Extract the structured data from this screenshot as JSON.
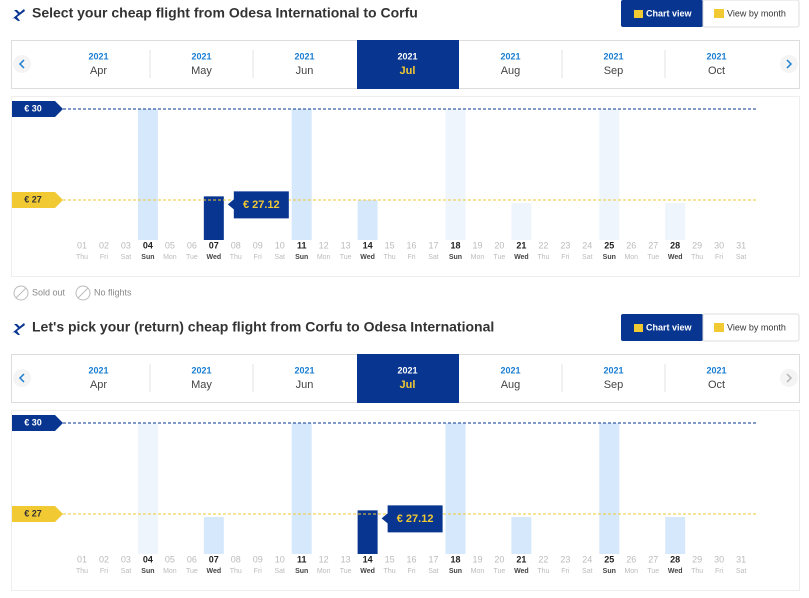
{
  "panels": [
    {
      "title": "Select your cheap flight from Odesa International to Corfu",
      "buttons": [
        "Chart view",
        "View by month"
      ],
      "months": [
        {
          "year": "2021",
          "month": "Apr"
        },
        {
          "year": "2021",
          "month": "May"
        },
        {
          "year": "2021",
          "month": "Jun"
        },
        {
          "year": "2021",
          "month": "Jul",
          "selected": true
        },
        {
          "year": "2021",
          "month": "Aug"
        },
        {
          "year": "2021",
          "month": "Sep"
        },
        {
          "year": "2021",
          "month": "Oct"
        }
      ],
      "next_arrow_color": "#1a7ed2",
      "ref_lines": [
        {
          "value": 30,
          "label": "€ 30",
          "color": "#073590"
        },
        {
          "value": 27,
          "label": "€ 27",
          "color": "#f1c933"
        }
      ],
      "days": [
        {
          "day": "01",
          "weekday": "Thu"
        },
        {
          "day": "02",
          "weekday": "Fri"
        },
        {
          "day": "03",
          "weekday": "Sat"
        },
        {
          "day": "04",
          "weekday": "Sun",
          "price": 30,
          "color": "#d6e8fb"
        },
        {
          "day": "05",
          "weekday": "Mon"
        },
        {
          "day": "06",
          "weekday": "Tue"
        },
        {
          "day": "07",
          "weekday": "Wed",
          "price": 27.12,
          "price_label": "€ 27.12",
          "color": "#073590",
          "selected": true
        },
        {
          "day": "08",
          "weekday": "Thu"
        },
        {
          "day": "09",
          "weekday": "Fri"
        },
        {
          "day": "10",
          "weekday": "Sat"
        },
        {
          "day": "11",
          "weekday": "Sun",
          "price": 30,
          "color": "#d6e8fb"
        },
        {
          "day": "12",
          "weekday": "Mon"
        },
        {
          "day": "13",
          "weekday": "Tue"
        },
        {
          "day": "14",
          "weekday": "Wed",
          "price": 27,
          "color": "#d6e8fb"
        },
        {
          "day": "15",
          "weekday": "Thu"
        },
        {
          "day": "16",
          "weekday": "Fri"
        },
        {
          "day": "17",
          "weekday": "Sat"
        },
        {
          "day": "18",
          "weekday": "Sun",
          "price": 30,
          "color": "#eef5fd"
        },
        {
          "day": "19",
          "weekday": "Mon"
        },
        {
          "day": "20",
          "weekday": "Tue"
        },
        {
          "day": "21",
          "weekday": "Wed",
          "price": 26.9,
          "color": "#eef5fd"
        },
        {
          "day": "22",
          "weekday": "Thu"
        },
        {
          "day": "23",
          "weekday": "Fri"
        },
        {
          "day": "24",
          "weekday": "Sat"
        },
        {
          "day": "25",
          "weekday": "Sun",
          "price": 30,
          "color": "#eef5fd"
        },
        {
          "day": "26",
          "weekday": "Mon"
        },
        {
          "day": "27",
          "weekday": "Tue"
        },
        {
          "day": "28",
          "weekday": "Wed",
          "price": 26.9,
          "color": "#eef5fd"
        },
        {
          "day": "29",
          "weekday": "Thu"
        },
        {
          "day": "30",
          "weekday": "Fri"
        },
        {
          "day": "31",
          "weekday": "Sat"
        }
      ],
      "legend": [
        "Sold out",
        "No flights"
      ]
    },
    {
      "title": "Let's pick your (return) cheap flight from Corfu to Odesa International",
      "buttons": [
        "Chart view",
        "View by month"
      ],
      "months": [
        {
          "year": "2021",
          "month": "Apr"
        },
        {
          "year": "2021",
          "month": "May"
        },
        {
          "year": "2021",
          "month": "Jun"
        },
        {
          "year": "2021",
          "month": "Jul",
          "selected": true
        },
        {
          "year": "2021",
          "month": "Aug"
        },
        {
          "year": "2021",
          "month": "Sep"
        },
        {
          "year": "2021",
          "month": "Oct"
        }
      ],
      "next_arrow_color": "#b5b5b5",
      "ref_lines": [
        {
          "value": 30,
          "label": "€ 30",
          "color": "#073590"
        },
        {
          "value": 27,
          "label": "€ 27",
          "color": "#f1c933"
        }
      ],
      "days": [
        {
          "day": "01",
          "weekday": "Thu"
        },
        {
          "day": "02",
          "weekday": "Fri"
        },
        {
          "day": "03",
          "weekday": "Sat"
        },
        {
          "day": "04",
          "weekday": "Sun",
          "price": 30,
          "color": "#eef5fd"
        },
        {
          "day": "05",
          "weekday": "Mon"
        },
        {
          "day": "06",
          "weekday": "Tue"
        },
        {
          "day": "07",
          "weekday": "Wed",
          "price": 26.9,
          "color": "#d6e8fb"
        },
        {
          "day": "08",
          "weekday": "Thu"
        },
        {
          "day": "09",
          "weekday": "Fri"
        },
        {
          "day": "10",
          "weekday": "Sat"
        },
        {
          "day": "11",
          "weekday": "Sun",
          "price": 30,
          "color": "#d6e8fb"
        },
        {
          "day": "12",
          "weekday": "Mon"
        },
        {
          "day": "13",
          "weekday": "Tue"
        },
        {
          "day": "14",
          "weekday": "Wed",
          "price": 27.12,
          "price_label": "€ 27.12",
          "color": "#073590",
          "selected": true
        },
        {
          "day": "15",
          "weekday": "Thu"
        },
        {
          "day": "16",
          "weekday": "Fri"
        },
        {
          "day": "17",
          "weekday": "Sat"
        },
        {
          "day": "18",
          "weekday": "Sun",
          "price": 30,
          "color": "#d6e8fb"
        },
        {
          "day": "19",
          "weekday": "Mon"
        },
        {
          "day": "20",
          "weekday": "Tue"
        },
        {
          "day": "21",
          "weekday": "Wed",
          "price": 26.9,
          "color": "#d6e8fb"
        },
        {
          "day": "22",
          "weekday": "Thu"
        },
        {
          "day": "23",
          "weekday": "Fri"
        },
        {
          "day": "24",
          "weekday": "Sat"
        },
        {
          "day": "25",
          "weekday": "Sun",
          "price": 30,
          "color": "#d6e8fb"
        },
        {
          "day": "26",
          "weekday": "Mon"
        },
        {
          "day": "27",
          "weekday": "Tue"
        },
        {
          "day": "28",
          "weekday": "Wed",
          "price": 26.9,
          "color": "#d6e8fb"
        },
        {
          "day": "29",
          "weekday": "Thu"
        },
        {
          "day": "30",
          "weekday": "Fri"
        },
        {
          "day": "31",
          "weekday": "Sat"
        }
      ]
    }
  ]
}
